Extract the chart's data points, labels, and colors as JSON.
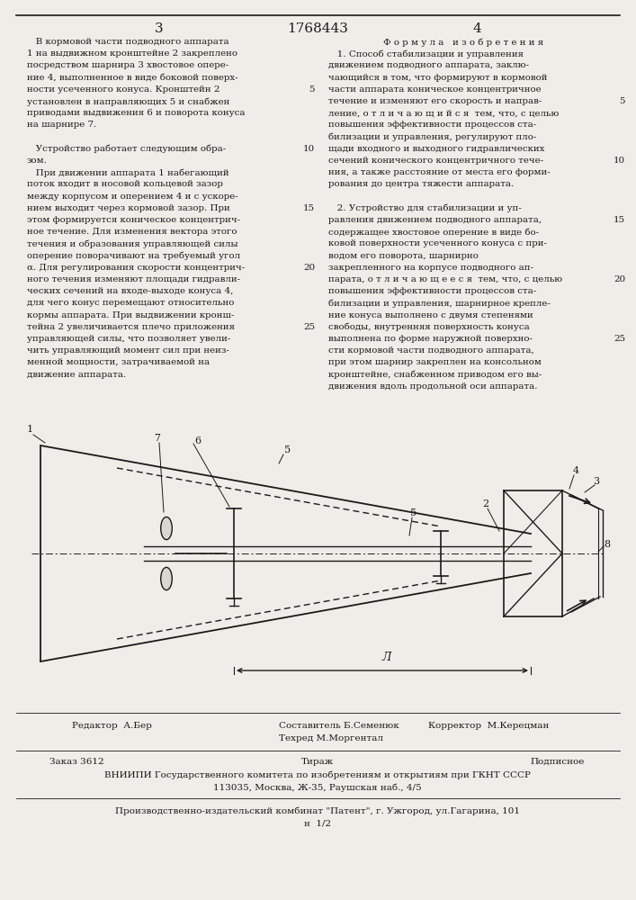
{
  "page_number_left": "3",
  "patent_number": "1768443",
  "page_number_right": "4",
  "background_color": "#f0ede8",
  "text_color": "#1a1a1a",
  "left_col_text": [
    "   В кормовой части подводного аппарата",
    "1 на выдвижном кронштейне 2 закреплено",
    "посредством шарнира 3 хвостовое опере-",
    "ние 4, выполненное в виде боковой поверх-",
    "ности усеченного конуса. Кронштейн 2",
    "установлен в направляющих 5 и снабжен",
    "приводами выдвижения 6 и поворота конуса",
    "на шарнире 7.",
    "",
    "   Устройство работает следующим обра-",
    "зом.",
    "   При движении аппарата 1 набегающий",
    "поток входит в носовой кольцевой зазор",
    "между корпусом и оперением 4 и с ускоре-",
    "нием выходит через кормовой зазор. При",
    "этом формируется коническое концентрич-",
    "ное течение. Для изменения вектора этого",
    "течения и образования управляющей силы",
    "оперение поворачивают на требуемый угол",
    "α. Для регулирования скорости концентрич-",
    "ного течения изменяют площади гидравли-",
    "ческих сечений на входе-выходе конуса 4,",
    "для чего конус перемещают относительно",
    "кормы аппарата. При выдвижении кронш-",
    "тейна 2 увеличивается плечо приложения",
    "управляющей силы, что позволяет увели-",
    "чить управляющий момент сил при неиз-",
    "менной мощности, затрачиваемой на",
    "движение аппарата."
  ],
  "right_col_header": "Ф о р м у л а   и з о б р е т е н и я",
  "right_col_text": [
    "   1. Способ стабилизации и управления",
    "движением подводного аппарата, заклю-",
    "чающийся в том, что формируют в кормовой",
    "части аппарата коническое концентричное",
    "течение и изменяют его скорость и направ-",
    "ление, о т л и ч а ю щ и й с я  тем, что, с целью",
    "повышения эффективности процессов ста-",
    "билизации и управления, регулируют пло-",
    "щади входного и выходного гидравлических",
    "сечений конического концентричного тече-",
    "ния, а также расстояние от места его форми-",
    "рования до центра тяжести аппарата.",
    "",
    "   2. Устройство для стабилизации и уп-",
    "равления движением подводного аппарата,",
    "содержащее хвостовое оперение в виде бо-",
    "ковой поверхности усеченного конуса с при-",
    "водом его поворота, шарнирно",
    "закрепленного на корпусе подводного ап-",
    "парата, о т л и ч а ю щ е е с я  тем, что, с целью",
    "повышения эффективности процессов ста-",
    "билизации и управления, шарнирное крепле-",
    "ние конуса выполнено с двумя степенями",
    "свободы, внутренняя поверхность конуса",
    "выполнена по форме наружной поверхно-",
    "сти кормовой части подводного аппарата,",
    "при этом шарнир закреплен на консольном",
    "кронштейне, снабженном приводом его вы-",
    "движения вдоль продольной оси аппарата."
  ],
  "footer_editor": "Редактор  А.Бер",
  "footer_composer": "Составитель Б.Семенюк",
  "footer_tech": "Техред М.Моргентал",
  "footer_corrector": "Корректор  М.Керецман",
  "footer_order": "Заказ 3612",
  "footer_circulation": "Тираж",
  "footer_subscription": "Подписное",
  "footer_vniip": "ВНИИПИ Государственного комитета по изобретениям и открытиям при ГКНТ СССР",
  "footer_address": "113035, Москва, Ж-35, Раушская наб., 4/5",
  "footer_publisher": "Производственно-издательский комбинат \"Патент\", г. Ужгород, ул.Гагарина, 101",
  "footer_page_num": "н  1/2"
}
